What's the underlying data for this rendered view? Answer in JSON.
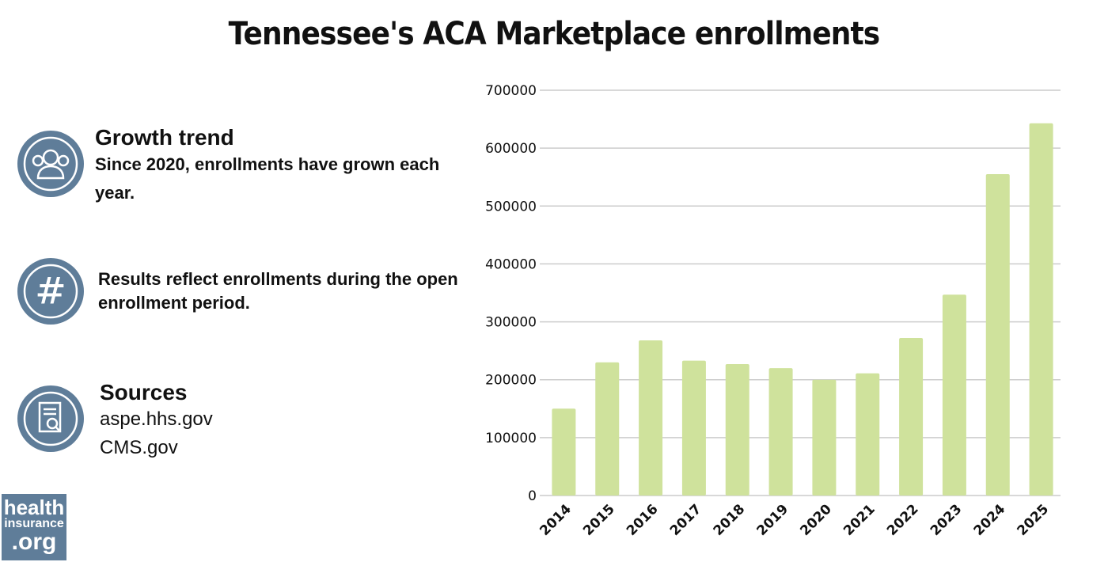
{
  "title": "Tennessee's ACA Marketplace enrollments",
  "info": {
    "growth": {
      "icon": "people-icon",
      "heading": "Growth trend",
      "text": "Since 2020, enrollments have grown each year."
    },
    "note": {
      "icon": "hashtag-icon",
      "text": "Results reflect enrollments during the open enrollment period."
    },
    "sources": {
      "icon": "document-search-icon",
      "heading": "Sources",
      "items": [
        "aspe.hhs.gov",
        "CMS.gov"
      ]
    }
  },
  "logo": {
    "line1": "health",
    "line2": "insurance",
    "line3": ".org"
  },
  "colors": {
    "bar": "#cfe29c",
    "icon_bg": "#5f7d99",
    "grid": "#cccccc"
  },
  "chart_data": {
    "type": "bar",
    "title": "Tennessee's ACA Marketplace enrollments",
    "categories": [
      "2014",
      "2015",
      "2016",
      "2017",
      "2018",
      "2019",
      "2020",
      "2021",
      "2022",
      "2023",
      "2024",
      "2025"
    ],
    "values": [
      150000,
      230000,
      268000,
      233000,
      227000,
      220000,
      200000,
      211000,
      272000,
      347000,
      555000,
      643000
    ],
    "ylim": [
      0,
      700000
    ],
    "yticks": [
      0,
      100000,
      200000,
      300000,
      400000,
      500000,
      600000,
      700000
    ],
    "grid": true,
    "xlabel": "",
    "ylabel": ""
  }
}
